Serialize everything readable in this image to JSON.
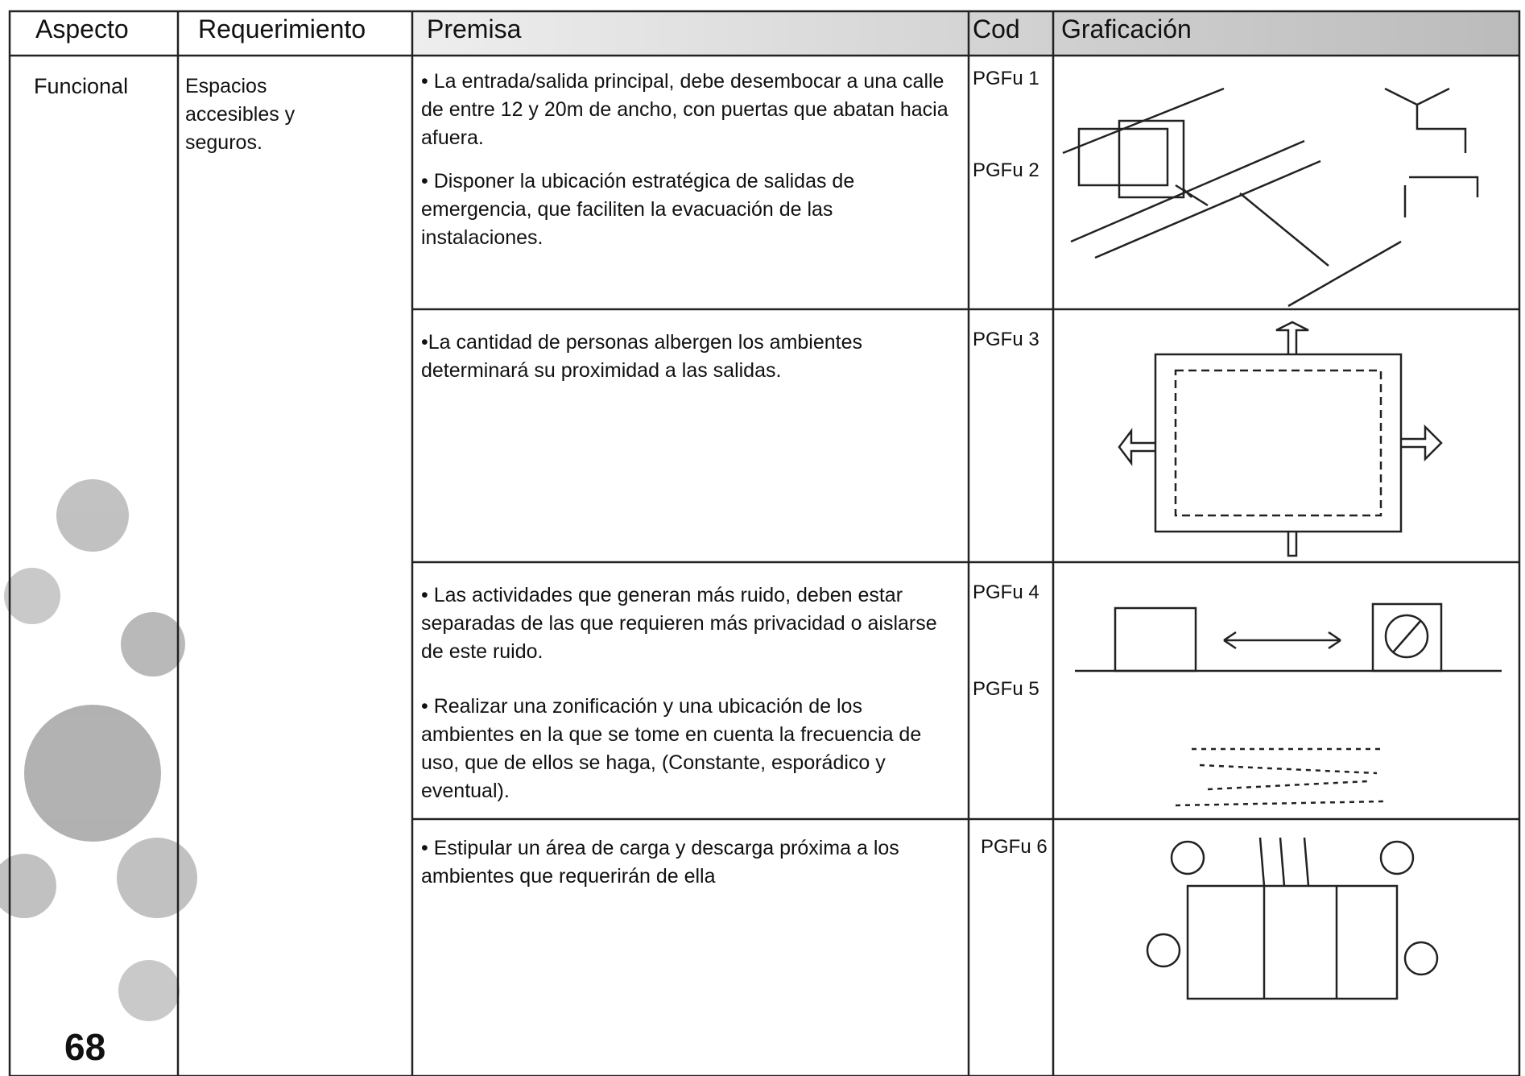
{
  "header": {
    "columns": [
      "Aspecto",
      "Requerimiento",
      "Premisa",
      "Cod",
      "Graficación"
    ]
  },
  "aspect": "Funcional",
  "requirement": "Espacios accesibles y seguros.",
  "rows": [
    {
      "premises": [
        "• La entrada/salida principal, debe desembocar a una calle de entre 12 y 20m de ancho, con puertas que abatan hacia afuera.",
        "• Disponer la ubicación estratégica de salidas de emergencia, que faciliten la evacuación de las instalaciones."
      ],
      "codes": [
        "PGFu 1",
        "PGFu 2"
      ]
    },
    {
      "premises": [
        "•La cantidad de personas albergen los ambientes determinará su proximidad a las salidas."
      ],
      "codes": [
        "PGFu 3"
      ]
    },
    {
      "premises": [
        "• Las actividades que generan más ruido, deben estar separadas de las que requieren más privacidad o aislarse de este ruido.",
        "• Realizar una zonificación y una ubicación de los ambientes en la que se tome en cuenta la frecuencia de uso, que de ellos se haga, (Constante, esporádico y eventual)."
      ],
      "codes": [
        "PGFu 4",
        "PGFu 5"
      ]
    },
    {
      "premises": [
        "• Estipular un área de carga y descarga próxima a los ambientes que requerirán de ella"
      ],
      "codes": [
        "PGFu 6"
      ]
    }
  ],
  "page_number": "68"
}
